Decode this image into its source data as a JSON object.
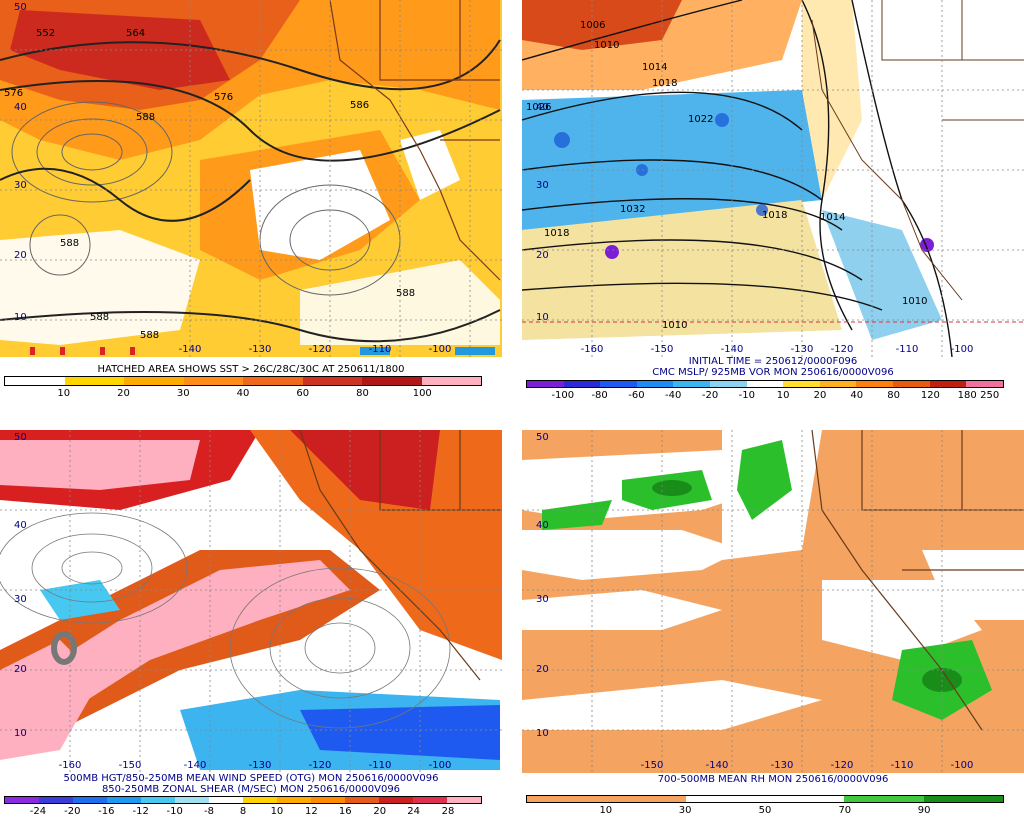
{
  "panels": {
    "top_left": {
      "captions": [
        "HATCHED AREA SHOWS SST > 26C/28C/30C AT 250611/1800"
      ],
      "colorbar": {
        "labels": [
          "10",
          "20",
          "30",
          "40",
          "60",
          "80",
          "100"
        ],
        "colors": [
          "#ffffff",
          "#ffd500",
          "#ffaa00",
          "#ff8c1a",
          "#ee6a1a",
          "#cc3322",
          "#b01818",
          "#ffb0c0"
        ]
      },
      "lat_labels": [
        "50",
        "40",
        "30",
        "20",
        "10"
      ],
      "lon_labels": [
        "-140",
        "-130",
        "-120",
        "-110",
        "-100"
      ],
      "contour_labels": [
        "552",
        "564",
        "576",
        "576",
        "588",
        "586",
        "588",
        "588",
        "588",
        "588"
      ]
    },
    "top_right": {
      "captions": [
        "INITIAL TIME = 250612/0000F096",
        "CMC MSLP/ 925MB VOR MON 250616/0000V096"
      ],
      "colorbar": {
        "labels": [
          "-100",
          "-80",
          "-60",
          "-40",
          "-20",
          "-10",
          "10",
          "20",
          "40",
          "80",
          "120",
          "180",
          "250"
        ],
        "colors": [
          "#7a1fd6",
          "#2a2ad6",
          "#1e5af0",
          "#1e8cf0",
          "#3cb4f0",
          "#8ad2f0",
          "#ffffff",
          "#ffe030",
          "#ffb020",
          "#ff8010",
          "#e85a10",
          "#c02010",
          "#f070a0"
        ]
      },
      "lat_labels": [
        "40",
        "30",
        "20",
        "10"
      ],
      "lon_labels": [
        "-160",
        "-150",
        "-140",
        "-130",
        "-120",
        "-110",
        "-100"
      ],
      "contour_labels": [
        "1010",
        "1014",
        "1018",
        "1022",
        "1026",
        "1032",
        "1014",
        "1018",
        "1010",
        "1010",
        "1006",
        "1018"
      ]
    },
    "bottom_left": {
      "captions": [
        "500MB HGT/850-250MB MEAN WIND SPEED (OTG) MON 250616/0000V096",
        "850-250MB ZONAL SHEAR (M/SEC) MON 250616/0000V096"
      ],
      "colorbar": {
        "labels": [
          "-24",
          "-20",
          "-16",
          "-12",
          "-10",
          "-8",
          "8",
          "10",
          "12",
          "16",
          "20",
          "24",
          "28"
        ],
        "colors": [
          "#8a2be2",
          "#3c3cdc",
          "#1e6ef0",
          "#1e9bf0",
          "#46c8f0",
          "#a0e0f0",
          "#ffffff",
          "#ffd200",
          "#ffaa00",
          "#ff8c00",
          "#e85a1a",
          "#cc2020",
          "#e03050",
          "#ffb0c0"
        ]
      },
      "lat_labels": [
        "50",
        "40",
        "30",
        "20",
        "10"
      ],
      "lon_labels": [
        "-160",
        "-150",
        "-140",
        "-130",
        "-120",
        "-110",
        "-100"
      ]
    },
    "bottom_right": {
      "captions": [
        "700-500MB MEAN RH MON 250616/0000V096"
      ],
      "colorbar": {
        "labels": [
          "10",
          "30",
          "50",
          "70",
          "90"
        ],
        "colors": [
          "#f4a460",
          "#f4a460",
          "#ffffff",
          "#ffffff",
          "#40c840",
          "#1a8c1a"
        ]
      },
      "lat_labels": [
        "50",
        "40",
        "30",
        "20",
        "10"
      ],
      "lon_labels": [
        "-150",
        "-140",
        "-130",
        "-120",
        "-110",
        "-100"
      ]
    }
  }
}
